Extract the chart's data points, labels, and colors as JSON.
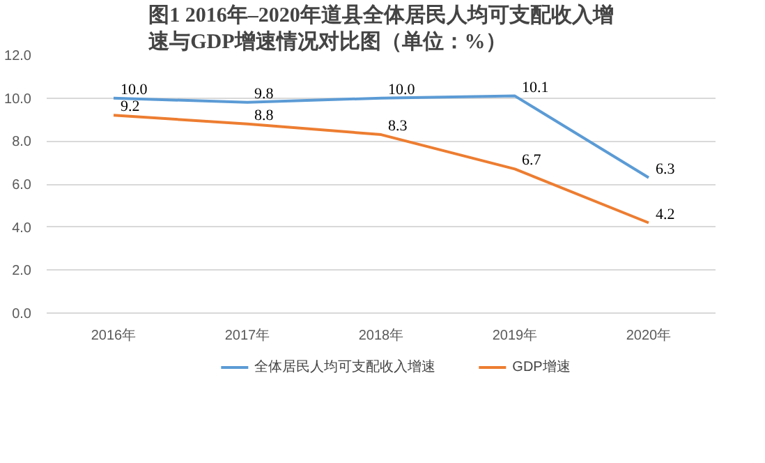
{
  "chart_data": {
    "type": "line",
    "title": "图1 2016年–2020年道县全体居民人均可支配收入增速与GDP增速情况对比图（单位：%）",
    "categories": [
      "2016年",
      "2017年",
      "2018年",
      "2019年",
      "2020年"
    ],
    "series": [
      {
        "name": "全体居民人均可支配收入增速",
        "color": "#5b9bd5",
        "values": [
          10.0,
          9.8,
          10.0,
          10.1,
          6.3
        ],
        "value_labels": [
          "10.0",
          "9.8",
          "10.0",
          "10.1",
          "6.3"
        ]
      },
      {
        "name": "GDP增速",
        "color": "#ed7d31",
        "values": [
          9.2,
          8.8,
          8.3,
          6.7,
          4.2
        ],
        "value_labels": [
          "9.2",
          "8.8",
          "8.3",
          "6.7",
          "4.2"
        ]
      }
    ],
    "ylim": [
      0,
      12
    ],
    "yticks": [
      {
        "value": 0,
        "label": "0.0"
      },
      {
        "value": 2,
        "label": "2.0"
      },
      {
        "value": 4,
        "label": "4.0"
      },
      {
        "value": 6,
        "label": "6.0"
      },
      {
        "value": 8,
        "label": "8.0"
      },
      {
        "value": 10,
        "label": "10.0"
      },
      {
        "value": 12,
        "label": "12.0"
      }
    ],
    "grid": "y",
    "legend": "bottom",
    "data_labels": true,
    "marker": "none",
    "line_style": "solid"
  }
}
